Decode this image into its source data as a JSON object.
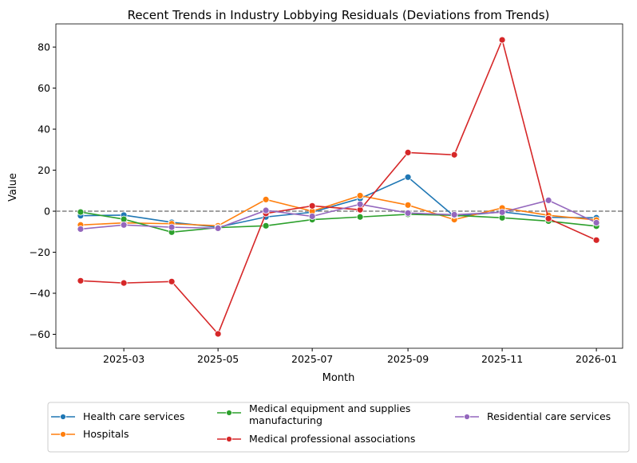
{
  "chart_data": {
    "type": "line",
    "title": "Recent Trends in Industry Lobbying Residuals (Deviations from Trends)",
    "xlabel": "Month",
    "ylabel": "Value",
    "x": [
      "2025-02-01",
      "2025-03-01",
      "2025-04-01",
      "2025-05-01",
      "2025-06-01",
      "2025-07-01",
      "2025-08-01",
      "2025-09-01",
      "2025-10-01",
      "2025-11-01",
      "2025-12-01",
      "2026-01-01"
    ],
    "xticks": [
      "2025-03",
      "2025-05",
      "2025-07",
      "2025-09",
      "2025-11",
      "2026-01"
    ],
    "yticks": [
      80,
      60,
      40,
      20,
      0,
      -20,
      -40,
      -60
    ],
    "ylim": [
      -66.8,
      91.3
    ],
    "xlim": [
      "2025-01-16",
      "2026-01-18"
    ],
    "reference_line": {
      "y": 0,
      "style": "dashed",
      "color": "#808080"
    },
    "grid": false,
    "legend_position": "bottom",
    "series": [
      {
        "name": "Health care services",
        "color": "#1f77b4",
        "values": [
          -2.2,
          -1.9,
          -5.4,
          -7.8,
          -2.8,
          -0.5,
          6.2,
          16.6,
          -2.5,
          -0.3,
          -3.0,
          -3.2
        ]
      },
      {
        "name": "Hospitals",
        "color": "#ff7f0e",
        "values": [
          -6.7,
          -5.7,
          -6.1,
          -7.1,
          5.7,
          0.0,
          7.6,
          3.0,
          -4.1,
          1.6,
          -2.0,
          -4.3
        ]
      },
      {
        "name": "Medical equipment and supplies manufacturing",
        "color": "#2ca02c",
        "values": [
          -0.4,
          -3.9,
          -10.2,
          -8.0,
          -7.1,
          -4.1,
          -2.8,
          -1.5,
          -2.0,
          -3.2,
          -4.8,
          -7.3
        ]
      },
      {
        "name": "Medical professional associations",
        "color": "#d62728",
        "values": [
          -33.9,
          -35.0,
          -34.3,
          -59.8,
          -1.1,
          2.6,
          0.7,
          28.6,
          27.5,
          83.5,
          -3.6,
          -14.1
        ]
      },
      {
        "name": "Residential care services",
        "color": "#9467bd",
        "values": [
          -8.7,
          -6.7,
          -7.8,
          -8.3,
          0.4,
          -2.5,
          3.4,
          -0.9,
          -1.7,
          -0.5,
          5.3,
          -5.6
        ]
      }
    ]
  }
}
